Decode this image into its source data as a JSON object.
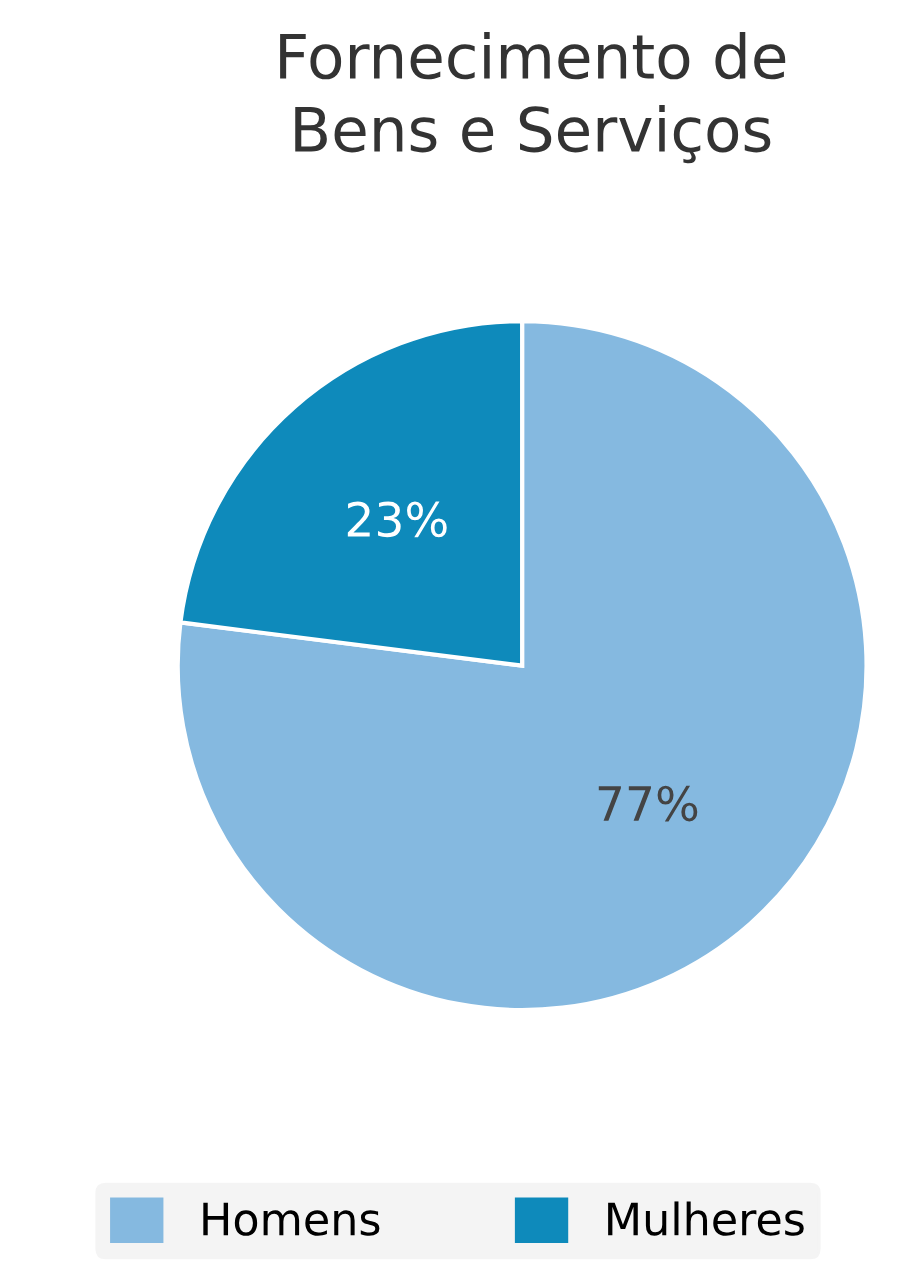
{
  "chart_data": {
    "type": "pie",
    "title": "Fornecimento de\nBens e Serviços",
    "categories": [
      "Homens",
      "Mulheres"
    ],
    "values": [
      77,
      23
    ],
    "colors": [
      "#85b9e0",
      "#0e8abb"
    ],
    "value_labels": [
      "77%",
      "23%"
    ],
    "legend": "bottom"
  }
}
